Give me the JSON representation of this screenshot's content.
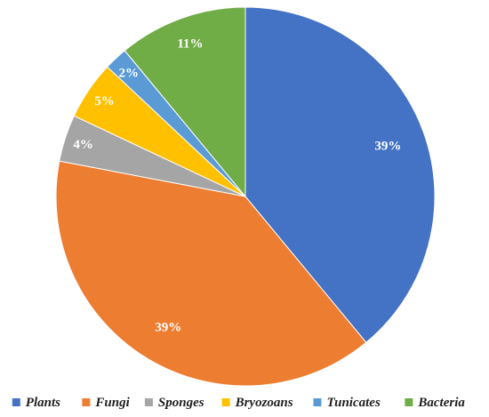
{
  "chart_data": {
    "type": "pie",
    "title": "",
    "series": [
      {
        "name": "Plants",
        "value": 39,
        "label": "39%",
        "color": "#4472C4"
      },
      {
        "name": "Fungi",
        "value": 39,
        "label": "39%",
        "color": "#ED7D31"
      },
      {
        "name": "Sponges",
        "value": 4,
        "label": "4%",
        "color": "#A5A5A5"
      },
      {
        "name": "Bryozoans",
        "value": 5,
        "label": "5%",
        "color": "#FFC000"
      },
      {
        "name": "Tunicates",
        "value": 2,
        "label": "2%",
        "color": "#5B9BD5"
      },
      {
        "name": "Bacteria",
        "value": 11,
        "label": "11%",
        "color": "#70AD47"
      }
    ],
    "start": "12 o'clock",
    "direction": "clockwise",
    "legend_position": "bottom"
  }
}
